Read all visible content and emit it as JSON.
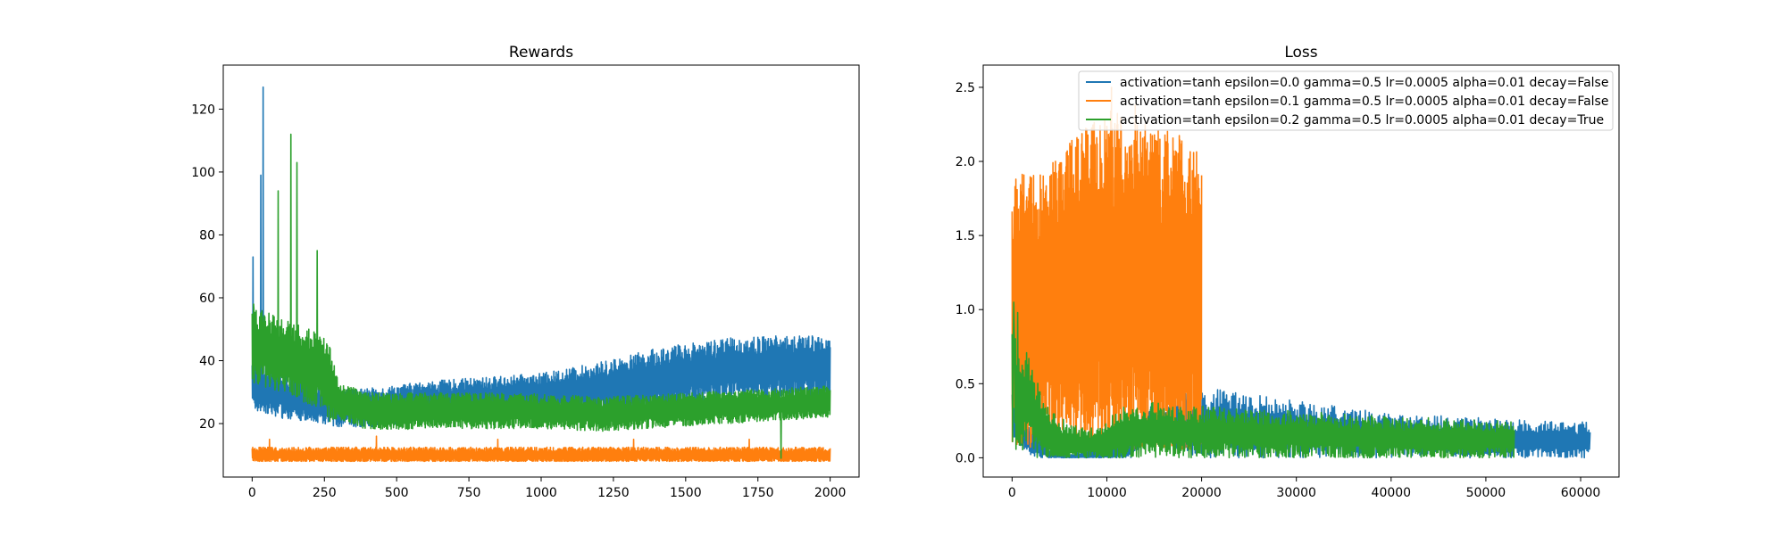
{
  "chart_data": [
    {
      "type": "line",
      "title": "Rewards",
      "xlabel": "",
      "ylabel": "",
      "xlim": [
        -100,
        2100
      ],
      "ylim": [
        3,
        134
      ],
      "xticks": [
        0,
        250,
        500,
        750,
        1000,
        1250,
        1500,
        1750,
        2000
      ],
      "yticks": [
        20,
        40,
        60,
        80,
        100,
        120
      ],
      "n_points": 2000,
      "grid": false,
      "series": [
        {
          "color": "#1f77b4",
          "profile": [
            [
              0,
              32
            ],
            [
              50,
              31
            ],
            [
              100,
              29
            ],
            [
              200,
              27
            ],
            [
              300,
              25
            ],
            [
              400,
              25
            ],
            [
              600,
              27
            ],
            [
              800,
              28
            ],
            [
              1000,
              29
            ],
            [
              1200,
              31
            ],
            [
              1400,
              34
            ],
            [
              1600,
              37
            ],
            [
              1800,
              38
            ],
            [
              2000,
              38
            ]
          ],
          "noise": [
            [
              0,
              8
            ],
            [
              300,
              6
            ],
            [
              1000,
              7
            ],
            [
              1400,
              10
            ],
            [
              2000,
              10
            ]
          ],
          "spikes": [
            [
              38,
              127
            ],
            [
              30,
              99
            ],
            [
              3,
              73
            ]
          ],
          "min": 17
        },
        {
          "color": "#ff7f0e",
          "profile": [
            [
              0,
              10
            ],
            [
              2000,
              10
            ]
          ],
          "noise": [
            [
              0,
              2.5
            ],
            [
              2000,
              2.5
            ]
          ],
          "spikes": [
            [
              60,
              15
            ],
            [
              430,
              16
            ],
            [
              850,
              15
            ],
            [
              1320,
              15
            ],
            [
              1720,
              15
            ]
          ],
          "min": 8
        },
        {
          "color": "#2ca02c",
          "profile": [
            [
              0,
              45
            ],
            [
              100,
              42
            ],
            [
              200,
              38
            ],
            [
              250,
              36
            ],
            [
              300,
              27
            ],
            [
              400,
              24
            ],
            [
              700,
              24
            ],
            [
              1000,
              24
            ],
            [
              1200,
              23
            ],
            [
              1400,
              24
            ],
            [
              1600,
              25
            ],
            [
              1800,
              26
            ],
            [
              2000,
              27
            ]
          ],
          "noise": [
            [
              0,
              12
            ],
            [
              270,
              12
            ],
            [
              300,
              6
            ],
            [
              2000,
              5
            ]
          ],
          "spikes": [
            [
              134,
              112
            ],
            [
              155,
              103
            ],
            [
              90,
              94
            ],
            [
              5,
              58
            ],
            [
              225,
              75
            ],
            [
              1830,
              9
            ]
          ],
          "min": 14
        }
      ]
    },
    {
      "type": "line",
      "title": "Loss",
      "xlabel": "",
      "ylabel": "",
      "xlim": [
        -3050,
        64050
      ],
      "ylim": [
        -0.13,
        2.65
      ],
      "xticks": [
        0,
        10000,
        20000,
        30000,
        40000,
        50000,
        60000
      ],
      "yticks": [
        0.0,
        0.5,
        1.0,
        1.5,
        2.0,
        2.5
      ],
      "n_points": 900,
      "grid": false,
      "legend_position": "top-right",
      "series": [
        {
          "name": "activation=tanh epsilon=0.0 gamma=0.5 lr=0.0005 alpha=0.01 decay=False",
          "color": "#1f77b4",
          "x_end": 61000,
          "profile": [
            [
              0,
              0.3
            ],
            [
              2000,
              0.1
            ],
            [
              4000,
              0.02
            ],
            [
              6000,
              0.0
            ],
            [
              12000,
              0.05
            ],
            [
              14000,
              0.22
            ],
            [
              20000,
              0.24
            ],
            [
              30000,
              0.19
            ],
            [
              40000,
              0.15
            ],
            [
              50000,
              0.13
            ],
            [
              53000,
              0.12
            ],
            [
              61000,
              0.11
            ]
          ],
          "noise": [
            [
              0,
              0.15
            ],
            [
              5000,
              0.01
            ],
            [
              13000,
              0.1
            ],
            [
              20000,
              0.24
            ],
            [
              40000,
              0.15
            ],
            [
              61000,
              0.13
            ]
          ],
          "spikes": [
            [
              300,
              0.85
            ]
          ],
          "min": 0
        },
        {
          "name": "activation=tanh epsilon=0.1 gamma=0.5 lr=0.0005 alpha=0.01 decay=False",
          "color": "#ff7f0e",
          "x_end": 20000,
          "profile": [
            [
              0,
              0.9
            ],
            [
              1000,
              1.0
            ],
            [
              3000,
              0.95
            ],
            [
              6000,
              1.1
            ],
            [
              10000,
              1.2
            ],
            [
              14000,
              1.15
            ],
            [
              18000,
              1.1
            ],
            [
              20000,
              1.05
            ]
          ],
          "noise": [
            [
              0,
              0.9
            ],
            [
              5000,
              1.0
            ],
            [
              10000,
              1.15
            ],
            [
              15000,
              1.1
            ],
            [
              20000,
              1.05
            ]
          ],
          "spikes": [
            [
              400,
              1.88
            ],
            [
              200,
              1.52
            ],
            [
              10500,
              2.5
            ],
            [
              13000,
              2.38
            ]
          ],
          "min": 0
        },
        {
          "name": "activation=tanh epsilon=0.2 gamma=0.5 lr=0.0005 alpha=0.01 decay=True",
          "color": "#2ca02c",
          "x_end": 53000,
          "profile": [
            [
              0,
              0.45
            ],
            [
              1500,
              0.4
            ],
            [
              3000,
              0.2
            ],
            [
              5000,
              0.1
            ],
            [
              8000,
              0.09
            ],
            [
              10000,
              0.1
            ],
            [
              12000,
              0.17
            ],
            [
              15000,
              0.18
            ],
            [
              20000,
              0.17
            ],
            [
              30000,
              0.15
            ],
            [
              40000,
              0.13
            ],
            [
              53000,
              0.12
            ]
          ],
          "noise": [
            [
              0,
              0.45
            ],
            [
              3000,
              0.25
            ],
            [
              8000,
              0.1
            ],
            [
              12000,
              0.2
            ],
            [
              20000,
              0.18
            ],
            [
              53000,
              0.13
            ]
          ],
          "spikes": [
            [
              150,
              1.05
            ],
            [
              600,
              0.98
            ]
          ],
          "min": 0
        }
      ]
    }
  ]
}
